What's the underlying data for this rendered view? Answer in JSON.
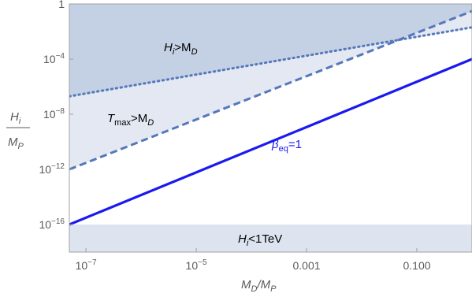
{
  "chart_data": {
    "type": "line",
    "x_scale": "log",
    "y_scale": "log",
    "xlim": [
      5e-08,
      1.0
    ],
    "ylim": [
      1e-18,
      1.0
    ],
    "x_ticks": [
      {
        "value": 1e-07,
        "base": "10",
        "exp": "−7",
        "text": ""
      },
      {
        "value": 1e-05,
        "base": "10",
        "exp": "−5",
        "text": ""
      },
      {
        "value": 0.001,
        "base": "",
        "exp": "",
        "text": "0.001"
      },
      {
        "value": 0.1,
        "base": "",
        "exp": "",
        "text": "0.100"
      }
    ],
    "y_ticks": [
      {
        "value": 1,
        "base": "",
        "exp": "",
        "text": "1"
      },
      {
        "value": 0.0001,
        "base": "10",
        "exp": "−4",
        "text": ""
      },
      {
        "value": 1e-08,
        "base": "10",
        "exp": "−8",
        "text": ""
      },
      {
        "value": 1e-12,
        "base": "10",
        "exp": "−12",
        "text": ""
      },
      {
        "value": 1e-16,
        "base": "10",
        "exp": "−16",
        "text": ""
      }
    ],
    "x_label": {
      "main": "M",
      "sub1": "D",
      "slash": "/M",
      "sub2": "P"
    },
    "y_label": {
      "num_main": "H",
      "num_sub": "i",
      "den_main": "M",
      "den_sub": "P"
    },
    "series": [
      {
        "name": "beta_eq_1",
        "style": "solid",
        "color": "#1a1af0",
        "x": [
          5e-08,
          1.0
        ],
        "y": [
          1e-16,
          0.0001
        ]
      },
      {
        "name": "T_max_gt_M_D",
        "style": "dashed",
        "color": "#5577bb",
        "x": [
          5e-08,
          1.0
        ],
        "y": [
          1e-12,
          0.3
        ]
      },
      {
        "name": "H_i_gt_M_D",
        "style": "dotted",
        "color": "#5577bb",
        "x": [
          5e-08,
          1.0
        ],
        "y": [
          2e-07,
          0.02
        ]
      }
    ],
    "regions": [
      {
        "name": "H_i_gt_M_D",
        "fill": "#c4d0e3",
        "bound": "dotted-line-and-top"
      },
      {
        "name": "T_max_gt_M_D",
        "fill": "#e3e8f2",
        "bound": "dashed-and-dotted-lines"
      },
      {
        "name": "H_i_lt_1TeV",
        "fill": "#dde3ef",
        "y_range": [
          1e-18,
          1e-16
        ]
      }
    ],
    "annotations": {
      "h_gt": {
        "main": "H",
        "sub": "i",
        "rest": ">M",
        "sub2": "D"
      },
      "t_gt": {
        "main": "T",
        "sub": "max",
        "rest": ">M",
        "sub2": "D"
      },
      "beta": {
        "main": "β",
        "sub": "eq",
        "rest": "=1"
      },
      "h_lt": {
        "main": "H",
        "sub": "i",
        "rest": "<1TeV"
      }
    }
  }
}
